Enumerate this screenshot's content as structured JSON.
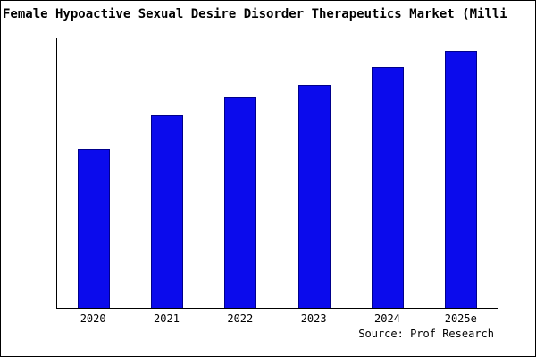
{
  "title": "Female Hypoactive Sexual Desire Disorder Therapeutics Market (Milli",
  "source": "Source: Prof Research",
  "colors": {
    "bar": "#0b0bec",
    "bar_border": "#00008b",
    "axis": "#000000",
    "background": "#ffffff"
  },
  "chart_data": {
    "type": "bar",
    "title": "Female Hypoactive Sexual Desire Disorder Therapeutics Market (Milli",
    "categories": [
      "2020",
      "2021",
      "2022",
      "2023",
      "2024",
      "2025e"
    ],
    "values": [
      62,
      75,
      82,
      87,
      94,
      100
    ],
    "xlabel": "",
    "ylabel": "",
    "ylim": [
      0,
      105
    ],
    "grid": false,
    "legend_position": "none",
    "y_axis_ticks_visible": false,
    "bar_color": "#0b0bec",
    "source": "Source: Prof Research"
  }
}
